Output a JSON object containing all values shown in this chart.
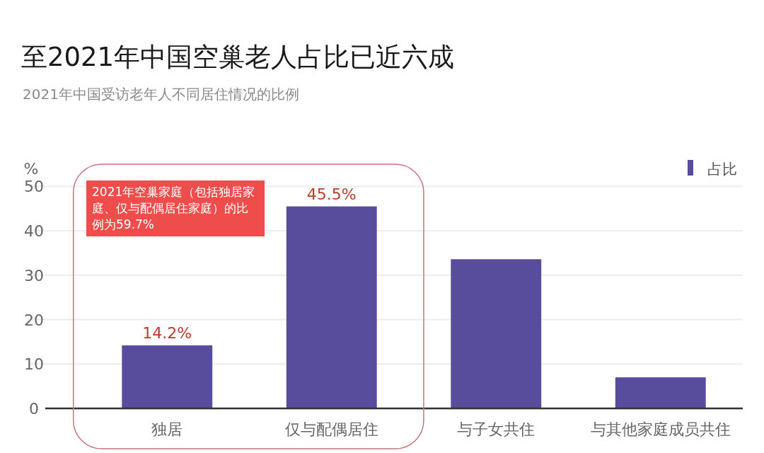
{
  "chart_data": {
    "type": "bar",
    "title": "至2021年中国空巢老人占比已近六成",
    "subtitle": "2021年中国受访老年人不同居住情况的比例",
    "ylabel": "%",
    "categories": [
      "独居",
      "仅与配偶居住",
      "与子女共住",
      "与其他家庭成员共住"
    ],
    "series": [
      {
        "name": "占比",
        "color": "#584c9c",
        "values": [
          14.2,
          45.5,
          33.6,
          7.0
        ],
        "value_labels": [
          "14.2%",
          "45.5%",
          null,
          null
        ]
      }
    ],
    "ylim": [
      0,
      55
    ],
    "yticks": [
      0,
      10,
      20,
      30,
      40,
      50
    ],
    "grid": "y",
    "legend": "top right",
    "annotations": [
      "2021年空巢家庭（包括独居家庭、仅与配偶居住家庭）的比例为59.7%"
    ]
  }
}
